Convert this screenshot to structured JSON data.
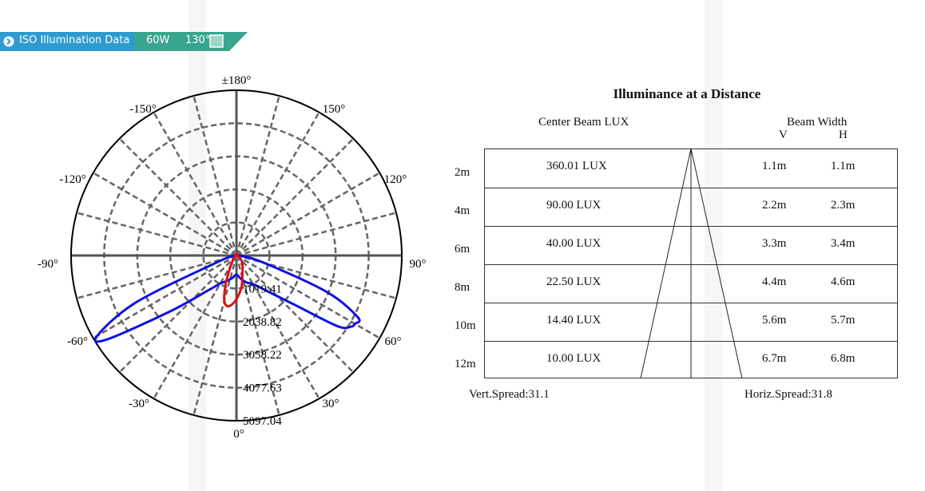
{
  "banner": {
    "title": "ISO Illumination  Data",
    "power": "60W",
    "angle": "130°",
    "color": "#3aa58e"
  },
  "chart_data": [
    {
      "type": "polar",
      "angle_labels": [
        "±180°",
        "150°",
        "120°",
        "90°",
        "60°",
        "30°",
        "0°",
        "-30°",
        "-60°",
        "-90°",
        "-120°",
        "-150°"
      ],
      "radial_ticks": [
        1019.41,
        2038.82,
        3058.22,
        4077.63,
        5097.04
      ],
      "radial_tick_labels": [
        "1019.41",
        "2038.82",
        "3058.22",
        "4077.63",
        "5097.04"
      ],
      "rmax": 5097.04,
      "grid": true,
      "series": [
        {
          "color": "#1010e0",
          "points": [
            [
              -90,
              0
            ],
            [
              -80,
              120
            ],
            [
              -70,
              700
            ],
            [
              -65,
              3400
            ],
            [
              -60,
              4950
            ],
            [
              -57,
              4750
            ],
            [
              -50,
              2700
            ],
            [
              -40,
              1450
            ],
            [
              -30,
              1000
            ],
            [
              -20,
              830
            ],
            [
              -10,
              700
            ],
            [
              0,
              590
            ],
            [
              10,
              720
            ],
            [
              20,
              880
            ],
            [
              30,
              1020
            ],
            [
              40,
              1400
            ],
            [
              50,
              2400
            ],
            [
              55,
              3800
            ],
            [
              58,
              4150
            ],
            [
              60,
              4220
            ],
            [
              63,
              4200
            ],
            [
              68,
              3000
            ],
            [
              75,
              900
            ],
            [
              85,
              150
            ],
            [
              90,
              0
            ]
          ]
        },
        {
          "color": "#e01010",
          "points": [
            [
              -90,
              0
            ],
            [
              -60,
              30
            ],
            [
              -40,
              140
            ],
            [
              -30,
              330
            ],
            [
              -25,
              560
            ],
            [
              -20,
              1000
            ],
            [
              -15,
              1450
            ],
            [
              -10,
              1590
            ],
            [
              -5,
              1510
            ],
            [
              0,
              1350
            ],
            [
              5,
              1150
            ],
            [
              10,
              950
            ],
            [
              20,
              550
            ],
            [
              30,
              370
            ],
            [
              40,
              280
            ],
            [
              50,
              160
            ],
            [
              70,
              40
            ],
            [
              90,
              0
            ],
            [
              120,
              30
            ],
            [
              150,
              50
            ],
            [
              180,
              40
            ],
            [
              -150,
              40
            ],
            [
              -120,
              20
            ],
            [
              -90,
              0
            ]
          ]
        }
      ]
    },
    {
      "type": "table",
      "title": "Illuminance at a Distance",
      "columns": [
        "Center Beam LUX",
        "Beam Width"
      ],
      "subcolumns": [
        "V",
        "H"
      ],
      "rows": [
        {
          "distance": "2m",
          "lux": "360.01 LUX",
          "v": "1.1m",
          "h": "1.1m"
        },
        {
          "distance": "4m",
          "lux": "90.00 LUX",
          "v": "2.2m",
          "h": "2.3m"
        },
        {
          "distance": "6m",
          "lux": "40.00 LUX",
          "v": "3.3m",
          "h": "3.4m"
        },
        {
          "distance": "8m",
          "lux": "22.50 LUX",
          "v": "4.4m",
          "h": "4.6m"
        },
        {
          "distance": "10m",
          "lux": "14.40 LUX",
          "v": "5.6m",
          "h": "5.7m"
        },
        {
          "distance": "12m",
          "lux": "10.00 LUX",
          "v": "6.7m",
          "h": "6.8m"
        }
      ],
      "vert_spread": "Vert.Spread:31.1",
      "horiz_spread": "Horiz.Spread:31.8"
    }
  ]
}
